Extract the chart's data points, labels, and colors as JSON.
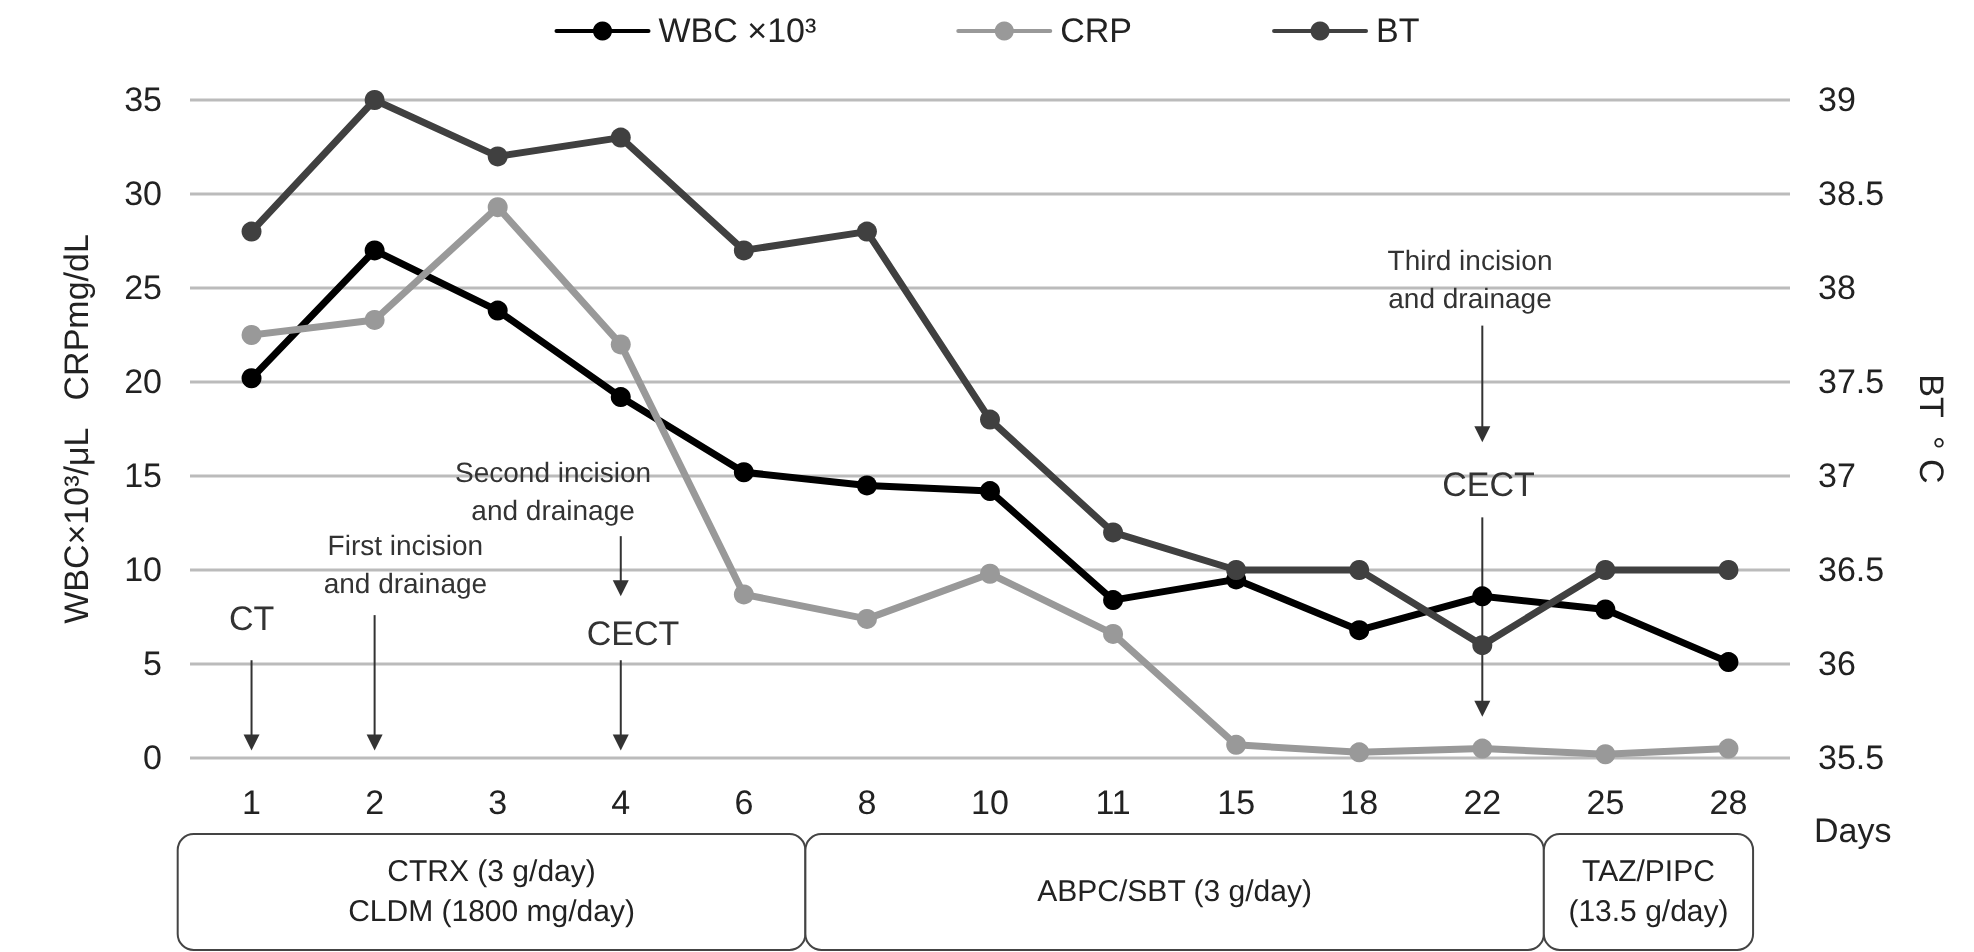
{
  "chart_data": {
    "type": "line",
    "categories": [
      "1",
      "2",
      "3",
      "4",
      "6",
      "8",
      "10",
      "11",
      "15",
      "18",
      "22",
      "25",
      "28"
    ],
    "series": [
      {
        "name": "WBC ×10³",
        "color": "#000000",
        "values": [
          20.2,
          27,
          23.8,
          19.2,
          15.2,
          14.5,
          14.2,
          8.4,
          9.5,
          6.8,
          8.6,
          7.9,
          5.1
        ]
      },
      {
        "name": "CRP",
        "color": "#999999",
        "values": [
          22.5,
          23.3,
          29.3,
          22,
          8.7,
          7.4,
          9.8,
          6.6,
          0.7,
          0.3,
          0.5,
          0.2,
          0.5
        ]
      },
      {
        "name": "BT",
        "color": "#404040",
        "axis": "y2",
        "values": [
          38.3,
          39.0,
          38.7,
          38.8,
          38.2,
          38.3,
          37.3,
          36.7,
          36.5,
          36.5,
          36.1,
          36.5,
          36.5
        ]
      }
    ],
    "xlabel": "Days",
    "ylabel": "WBC×10³/μL   CRPmg/dL",
    "y2label": "BT  ° C",
    "ylim": [
      0,
      35
    ],
    "yticks": [
      0,
      5,
      10,
      15,
      20,
      25,
      30,
      35
    ],
    "y2lim": [
      35.5,
      39
    ],
    "y2ticks": [
      35.5,
      36,
      36.5,
      37,
      37.5,
      38,
      38.5,
      39
    ],
    "annotations": [
      "CT",
      "First incision\nand drainage",
      "CECT",
      "Second incision\nand drainage",
      "CECT",
      "Third incision\nand drainage",
      "CTRX (3 g/day)\nCLDM (1800 mg/day)",
      "ABPC/SBT (3 g/day)",
      "TAZ/PIPC\n(13.5 g/day)"
    ],
    "grid": "y",
    "legend": "top",
    "marker": "circle",
    "line_style": "solid"
  }
}
